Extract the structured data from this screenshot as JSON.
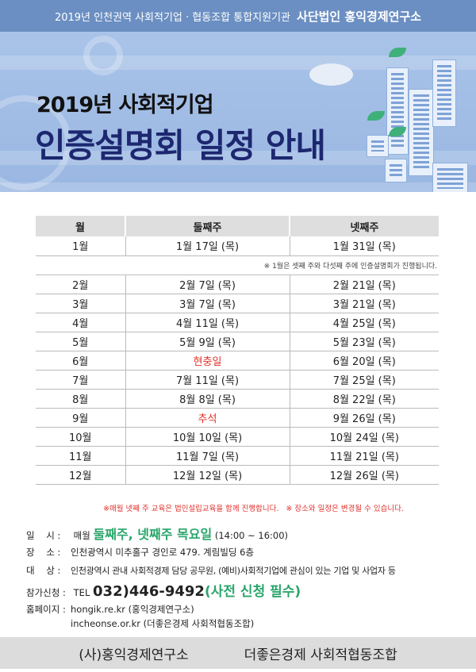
{
  "header": {
    "org_line": "2019년 인천권역 사회적기업 · 협동조합 통합지원기관",
    "org_name": "사단법인 홍익경제연구소"
  },
  "banner": {
    "title_line1": "2019년 사회적기업",
    "title_line2": "인증설명회 일정 안내"
  },
  "schedule": {
    "headers": [
      "월",
      "둘째주",
      "넷째주"
    ],
    "jan_note": "※ 1월은 셋째 주와 다섯째 주에 인증설명회가 진행됩니다.",
    "rows": [
      {
        "month": "1월",
        "second": "1월 17일 (목)",
        "fourth": "1월 31일 (목)"
      },
      {
        "month": "2월",
        "second": "2월 7일 (목)",
        "fourth": "2월 21일 (목)"
      },
      {
        "month": "3월",
        "second": "3월 7일 (목)",
        "fourth": "3월 21일 (목)"
      },
      {
        "month": "4월",
        "second": "4월 11일 (목)",
        "fourth": "4월 25일 (목)"
      },
      {
        "month": "5월",
        "second": "5월 9일 (목)",
        "fourth": "5월 23일 (목)"
      },
      {
        "month": "6월",
        "second": "현충일",
        "fourth": "6월 20일 (목)"
      },
      {
        "month": "7월",
        "second": "7월 11일 (목)",
        "fourth": "7월 25일 (목)"
      },
      {
        "month": "8월",
        "second": "8월 8일 (목)",
        "fourth": "8월 22일 (목)"
      },
      {
        "month": "9월",
        "second": "추석",
        "fourth": "9월 26일 (목)"
      },
      {
        "month": "10월",
        "second": "10월 10일 (목)",
        "fourth": "10월 24일 (목)"
      },
      {
        "month": "11월",
        "second": "11월 7일 (목)",
        "fourth": "11월 21일 (목)"
      },
      {
        "month": "12월",
        "second": "12월 12일 (목)",
        "fourth": "12월 26일 (목)"
      }
    ],
    "footnote": "※매월 넷째 주 교육은 법인설립교육을 함께 진행합니다.   ※ 장소와 일정은 변경될 수 있습니다."
  },
  "info": {
    "date_label": "일    시 :",
    "date_prefix": "매월",
    "date_highlight": "둘째주, 넷째주 목요일",
    "date_time": "(14:00 ~ 16:00)",
    "place_label": "장    소 :",
    "place": "인천광역시 미추홀구 경인로 479. 계림빌딩 6층",
    "target_label": "대    상 :",
    "target": "인천광역시 관내 사회적경제 담당 공무원, (예비)사회적기업에 관심이 있는 기업 및 사업자 등",
    "apply_label": "참가신청 :",
    "apply_tel": "TEL",
    "apply_phone": "032)446-9492",
    "apply_note": "(사전 신청 필수)",
    "home_label": "홈페이지 :",
    "home1": "hongik.re.kr (홍익경제연구소)",
    "home2": "incheonse.or.kr (더좋은경제 사회적협동조합)"
  },
  "footer": {
    "org1": "(사)홍익경제연구소",
    "org2": "더좋은경제 사회적협동조합"
  },
  "colors": {
    "accent_green": "#2aa56a",
    "title_navy": "#1d2770",
    "red": "#e0312c",
    "top_bar": "#6b8fc2"
  }
}
